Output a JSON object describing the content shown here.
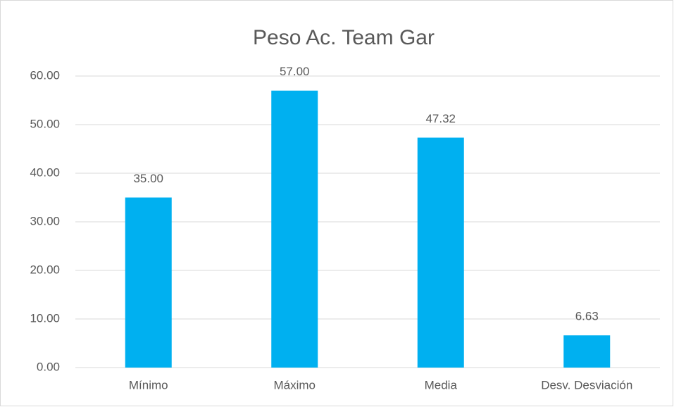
{
  "chart_data": {
    "type": "bar",
    "title": "Peso Ac. Team Gar",
    "categories": [
      "Mínimo",
      "Máximo",
      "Media",
      "Desv. Desviación"
    ],
    "values": [
      35,
      57,
      47.32,
      6.63
    ],
    "value_labels": [
      "35.00",
      "57.00",
      "47.32",
      "6.63"
    ],
    "color": "#00b0f0",
    "ylim": [
      0,
      60
    ],
    "yticks": [
      {
        "value": 0,
        "label": "0.00"
      },
      {
        "value": 10,
        "label": "10.00"
      },
      {
        "value": 20,
        "label": "20.00"
      },
      {
        "value": 30,
        "label": "30.00"
      },
      {
        "value": 40,
        "label": "40.00"
      },
      {
        "value": 50,
        "label": "50.00"
      },
      {
        "value": 60,
        "label": "60.00"
      }
    ],
    "grid": true
  }
}
